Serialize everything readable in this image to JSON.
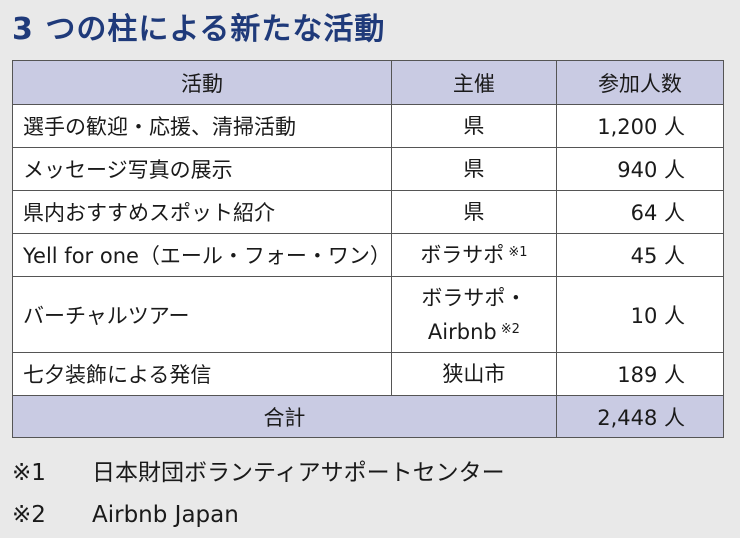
{
  "title": "3 つの柱による新たな活動",
  "table": {
    "headers": [
      "活動",
      "主催",
      "参加人数"
    ],
    "rows": [
      {
        "activity": "選手の歓迎・応援、清掃活動",
        "organizer": "県",
        "note": "",
        "organizer2": "",
        "note2": "",
        "count": "1,200 人"
      },
      {
        "activity": "メッセージ写真の展示",
        "organizer": "県",
        "note": "",
        "organizer2": "",
        "note2": "",
        "count": "940 人"
      },
      {
        "activity": "県内おすすめスポット紹介",
        "organizer": "県",
        "note": "",
        "organizer2": "",
        "note2": "",
        "count": "64 人"
      },
      {
        "activity": "Yell for one（エール・フォー・ワン）",
        "organizer": "ボラサポ",
        "note": "※1",
        "organizer2": "",
        "note2": "",
        "count": "45 人"
      },
      {
        "activity": "バーチャルツアー",
        "organizer": "ボラサポ・",
        "note": "",
        "organizer2": "Airbnb",
        "note2": "※2",
        "count": "10 人"
      },
      {
        "activity": "七夕装飾による発信",
        "organizer": "狭山市",
        "note": "",
        "organizer2": "",
        "note2": "",
        "count": "189 人"
      }
    ],
    "total_label": "合計",
    "total_count": "2,448 人"
  },
  "footnotes": [
    {
      "mark": "※1",
      "text": "日本財団ボランティアサポートセンター"
    },
    {
      "mark": "※2",
      "text": "Airbnb Japan"
    }
  ],
  "colors": {
    "title": "#1f3a7a",
    "header_bg": "#c9cbe3",
    "page_bg": "#e9e9e9"
  }
}
